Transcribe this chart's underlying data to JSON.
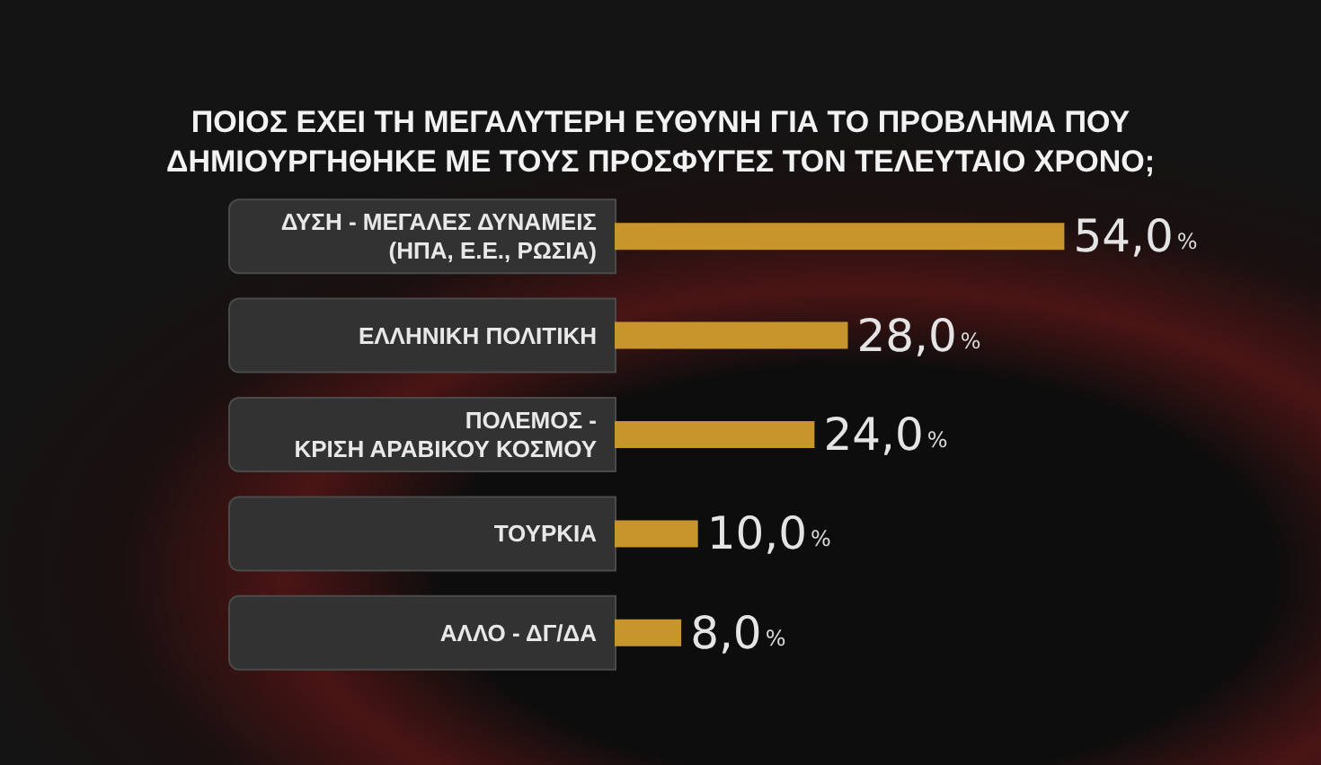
{
  "chart_data": {
    "type": "bar",
    "orientation": "horizontal",
    "title": "ΠΟΙΟΣ ΕΧΕΙ ΤΗ ΜΕΓΑΛΥΤΕΡΗ ΕΥΘΥΝΗ ΓΙΑ ΤΟ ΠΡΟΒΛΗΜΑ ΠΟΥ\nΔΗΜΙΟΥΡΓΗΘΗΚΕ ΜΕ ΤΟΥΣ ΠΡΟΣΦΥΓΕΣ ΤΟΝ ΤΕΛΕΥΤΑΙΟ ΧΡΟΝΟ;",
    "categories": [
      "ΔΥΣΗ - ΜΕΓΑΛΕΣ ΔΥΝΑΜΕΙΣ\n(ΗΠΑ, Ε.Ε., ΡΩΣΙΑ)",
      "ΕΛΛΗΝΙΚΗ ΠΟΛΙΤΙΚΗ",
      "ΠΟΛΕΜΟΣ -\nΚΡΙΣΗ ΑΡΑΒΙΚΟΥ ΚΟΣΜΟΥ",
      "ΤΟΥΡΚΙΑ",
      "ΑΛΛΟ - ΔΓ/ΔΑ"
    ],
    "values": [
      54.0,
      28.0,
      24.0,
      10.0,
      8.0
    ],
    "value_labels": [
      "54,0%",
      "28,0%",
      "24,0%",
      "10,0%",
      "8,0%"
    ],
    "color": "#c8942c"
  }
}
